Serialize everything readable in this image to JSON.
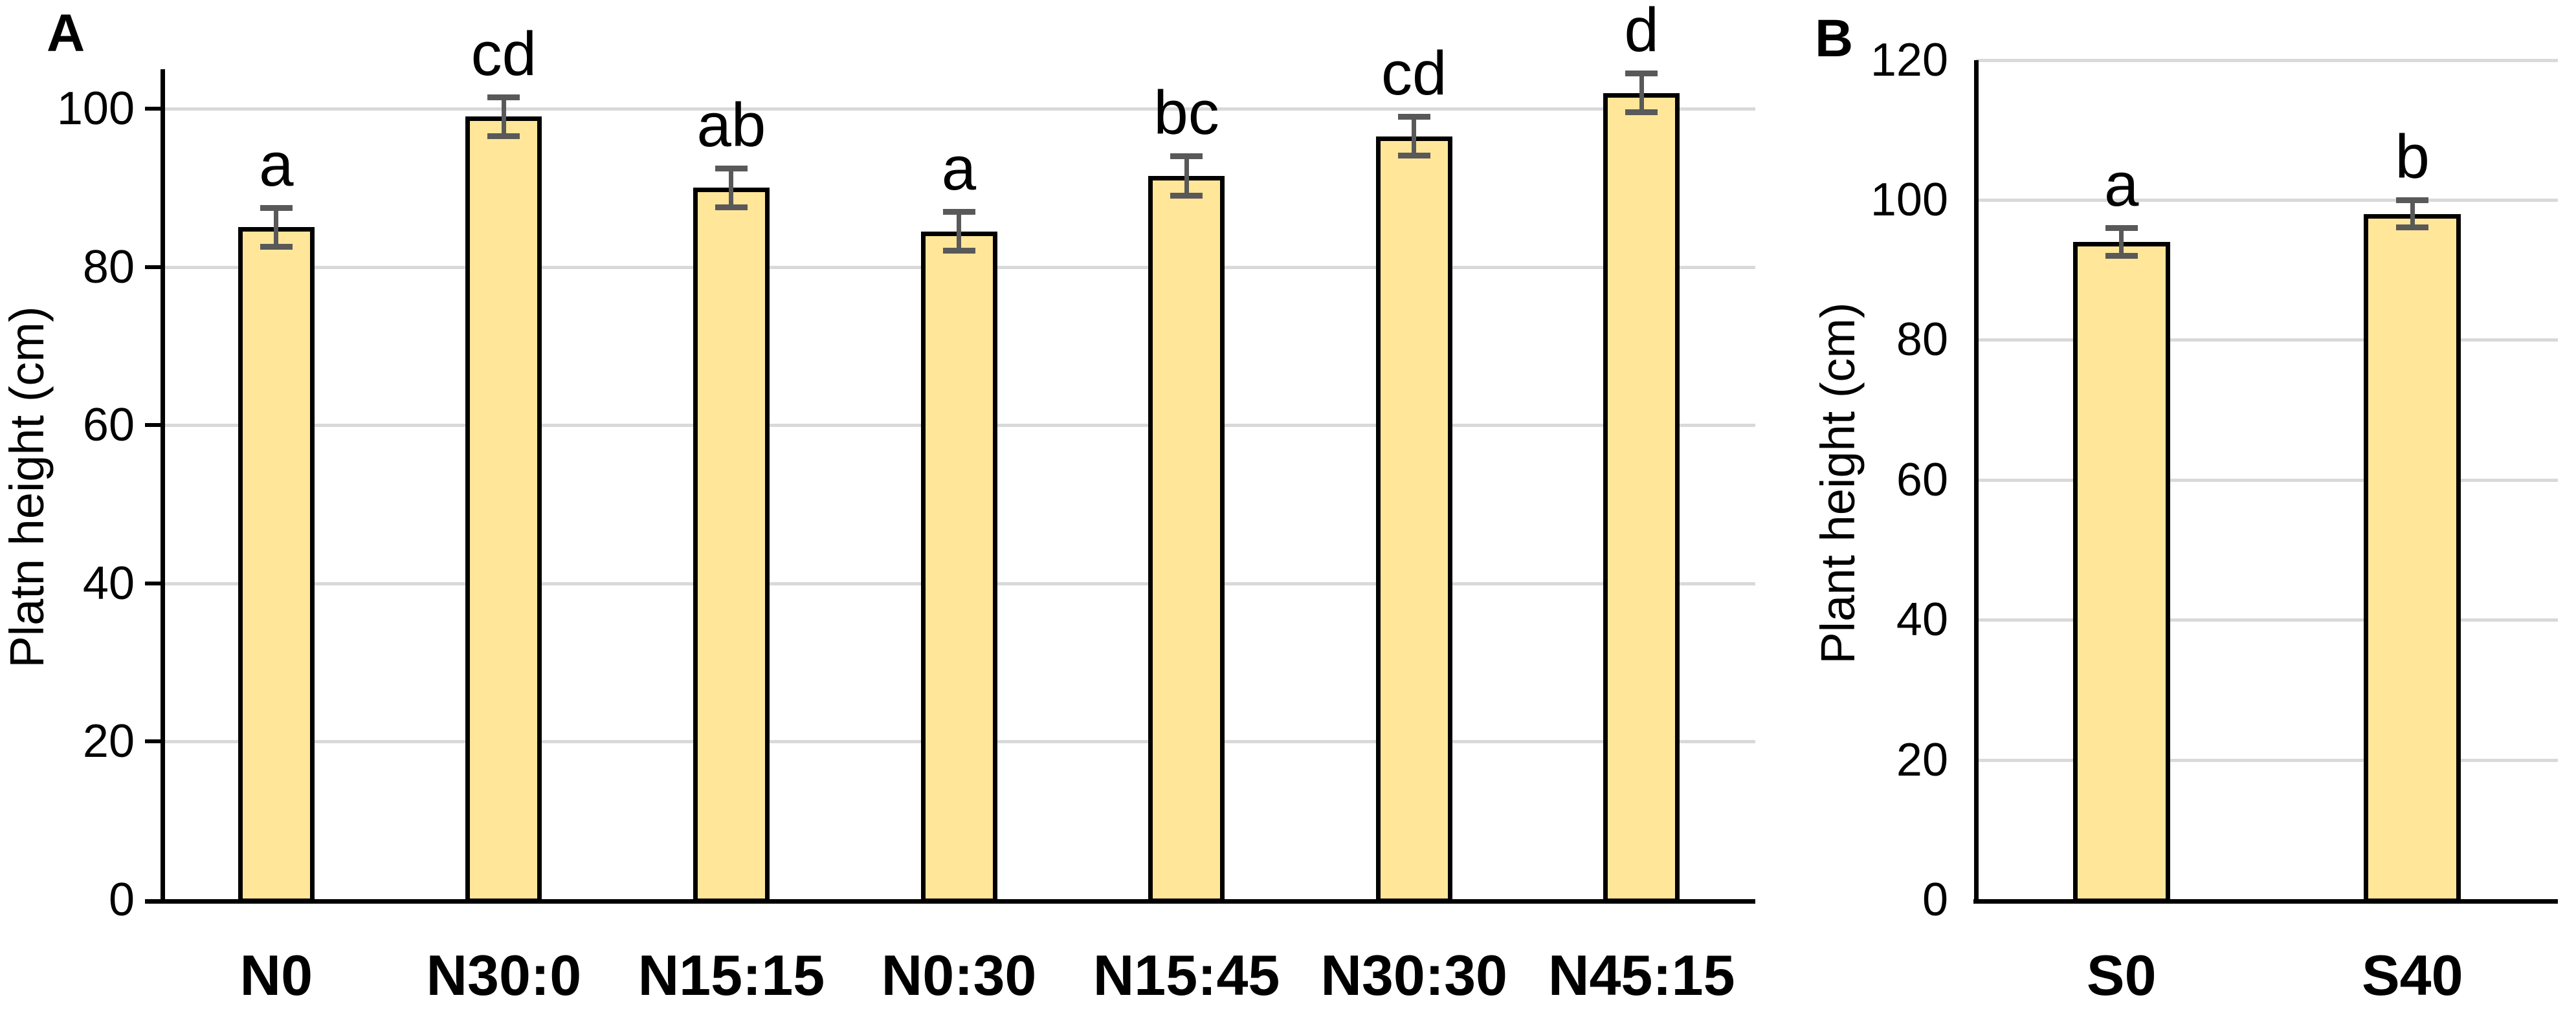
{
  "panels": [
    {
      "tag": "A",
      "y_axis_title": "Platn height (cm)"
    },
    {
      "tag": "B",
      "y_axis_title": "Plant height (cm)"
    }
  ],
  "chart_data": [
    {
      "type": "bar",
      "panel": "A",
      "title": "",
      "xlabel": "",
      "ylabel": "Platn height (cm)",
      "categories": [
        "N0",
        "N30:0",
        "N15:15",
        "N0:30",
        "N15:45",
        "N30:30",
        "N45:15"
      ],
      "values": [
        85,
        99,
        90,
        84.5,
        91.5,
        96.5,
        102
      ],
      "error_bars_plus_minus": [
        2.5,
        2.5,
        2.5,
        2.5,
        2.5,
        2.5,
        2.5
      ],
      "significance_letters": [
        "a",
        "cd",
        "ab",
        "a",
        "bc",
        "cd",
        "d"
      ],
      "ylim": [
        0,
        105
      ],
      "yticks": [
        0,
        20,
        40,
        60,
        80,
        100
      ],
      "gridlines": "horizontal",
      "legend": "none",
      "bar_fill": "#FFE699",
      "bar_border": "#000000",
      "error_bar_color": "#595959",
      "gridline_color": "#D9D9D9"
    },
    {
      "type": "bar",
      "panel": "B",
      "title": "",
      "xlabel": "",
      "ylabel": "Plant height (cm)",
      "categories": [
        "S0",
        "S40"
      ],
      "values": [
        94,
        98
      ],
      "error_bars_plus_minus": [
        2,
        2
      ],
      "significance_letters": [
        "a",
        "b"
      ],
      "ylim": [
        0,
        120
      ],
      "yticks": [
        0,
        20,
        40,
        60,
        80,
        100,
        120
      ],
      "gridlines": "horizontal",
      "legend": "none",
      "bar_fill": "#FFE699",
      "bar_border": "#000000",
      "error_bar_color": "#595959",
      "gridline_color": "#D9D9D9"
    }
  ]
}
